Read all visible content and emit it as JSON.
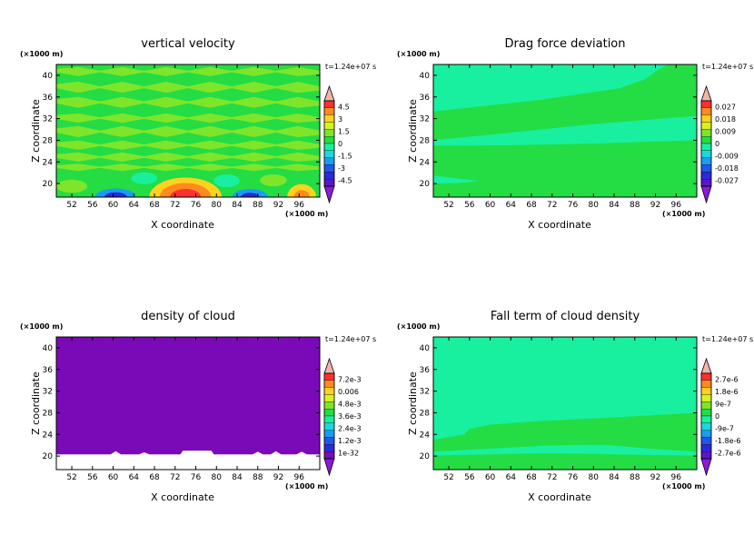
{
  "chart_data": [
    {
      "type": "heatmap",
      "title": "vertical velocity",
      "xlabel": "X coordinate",
      "ylabel": "Z coordinate",
      "x_unit": "(×1000 m)",
      "y_unit": "(×1000 m)",
      "time_label": "t=1.24e+07 s",
      "xlim": [
        49,
        100
      ],
      "ylim": [
        17.5,
        42
      ],
      "x_ticks": [
        "52",
        "56",
        "60",
        "64",
        "68",
        "72",
        "76",
        "80",
        "84",
        "88",
        "92",
        "96"
      ],
      "y_ticks": [
        "20",
        "24",
        "28",
        "32",
        "36",
        "40"
      ],
      "colorbar_labels": [
        "4.5",
        "3",
        "1.5",
        "0",
        "-1.5",
        "-3",
        "-4.5"
      ],
      "colorbar_colors": [
        "#ff3030",
        "#ff8a1f",
        "#ffd21f",
        "#d7f21f",
        "#7fe52a",
        "#24dd44",
        "#18f0a0",
        "#1ed6e0",
        "#1a9cf0",
        "#1e58ec",
        "#2a2ad8",
        "#5a16c8"
      ],
      "background_color": "#24dd44",
      "bands": [
        {
          "z0": 40.2,
          "z1": 41.2,
          "color": "#7fe52a"
        },
        {
          "z0": 37.2,
          "z1": 38.4,
          "color": "#7fe52a"
        },
        {
          "z0": 34.4,
          "z1": 35.6,
          "color": "#7fe52a"
        },
        {
          "z0": 31.6,
          "z1": 32.6,
          "color": "#7fe52a"
        },
        {
          "z0": 29.0,
          "z1": 30.2,
          "color": "#7fe52a"
        },
        {
          "z0": 26.6,
          "z1": 27.6,
          "color": "#7fe52a"
        },
        {
          "z0": 24.4,
          "z1": 25.4,
          "color": "#7fe52a"
        },
        {
          "z0": 22.6,
          "z1": 23.4,
          "color": "#7fe52a"
        }
      ],
      "cells": [
        {
          "x": 74,
          "z": 17.5,
          "rx": 7,
          "rz": 3.6,
          "color": "#ffd21f"
        },
        {
          "x": 74,
          "z": 17.5,
          "rx": 5,
          "rz": 2.6,
          "color": "#ff8a1f"
        },
        {
          "x": 74,
          "z": 17.5,
          "rx": 3,
          "rz": 1.5,
          "color": "#ff3030"
        },
        {
          "x": 60.5,
          "z": 17.5,
          "rx": 4,
          "rz": 1.6,
          "color": "#1a9cf0"
        },
        {
          "x": 60.5,
          "z": 17.5,
          "rx": 2.2,
          "rz": 0.9,
          "color": "#2a2ad8"
        },
        {
          "x": 86.5,
          "z": 17.5,
          "rx": 3.5,
          "rz": 1.5,
          "color": "#1a9cf0"
        },
        {
          "x": 86.5,
          "z": 17.5,
          "rx": 1.8,
          "rz": 0.8,
          "color": "#2a2ad8"
        },
        {
          "x": 96.5,
          "z": 17.5,
          "rx": 2.8,
          "rz": 2.4,
          "color": "#ffd21f"
        },
        {
          "x": 96.5,
          "z": 17.5,
          "rx": 1.5,
          "rz": 1.3,
          "color": "#ff8a1f"
        },
        {
          "x": 52,
          "z": 19.5,
          "rx": 3,
          "rz": 1.2,
          "color": "#7fe52a"
        },
        {
          "x": 66,
          "z": 21,
          "rx": 2.5,
          "rz": 1.1,
          "color": "#18f0a0"
        },
        {
          "x": 82,
          "z": 20.5,
          "rx": 2.5,
          "rz": 1.2,
          "color": "#18f0a0"
        },
        {
          "x": 91,
          "z": 20.6,
          "rx": 2.6,
          "rz": 1.1,
          "color": "#7fe52a"
        }
      ]
    },
    {
      "type": "heatmap",
      "title": "Drag force deviation",
      "xlabel": "X coordinate",
      "ylabel": "Z coordinate",
      "x_unit": "(×1000 m)",
      "y_unit": "(×1000 m)",
      "time_label": "t=1.24e+07 s",
      "xlim": [
        49,
        100
      ],
      "ylim": [
        17.5,
        42
      ],
      "x_ticks": [
        "52",
        "56",
        "60",
        "64",
        "68",
        "72",
        "76",
        "80",
        "84",
        "88",
        "92",
        "96"
      ],
      "y_ticks": [
        "20",
        "24",
        "28",
        "32",
        "36",
        "40"
      ],
      "colorbar_labels": [
        "0.027",
        "0.018",
        "0.009",
        "0",
        "-0.009",
        "-0.018",
        "-0.027"
      ],
      "colorbar_colors": [
        "#ff3030",
        "#ff8a1f",
        "#ffd21f",
        "#d7f21f",
        "#7fe52a",
        "#24dd44",
        "#18f0a0",
        "#1ed6e0",
        "#1a9cf0",
        "#1e58ec",
        "#2a2ad8",
        "#5a16c8"
      ],
      "background_color": "#18f0a0",
      "regions": [
        {
          "color": "#24dd44",
          "points": [
            [
              49,
              33.3
            ],
            [
              70,
              35.5
            ],
            [
              85,
              37.6
            ],
            [
              90,
              39.3
            ],
            [
              92.5,
              41.0
            ],
            [
              94.5,
              42
            ],
            [
              100,
              42
            ],
            [
              100,
              32.5
            ],
            [
              80,
              31.0
            ],
            [
              65,
              29.5
            ],
            [
              49,
              28.0
            ]
          ]
        },
        {
          "color": "#24dd44",
          "points": [
            [
              49,
              27.0
            ],
            [
              65,
              27.1
            ],
            [
              80,
              27.4
            ],
            [
              100,
              28.0
            ],
            [
              100,
              17.5
            ],
            [
              49,
              17.5
            ]
          ]
        },
        {
          "color": "#18f0a0",
          "points": [
            [
              49,
              21.5
            ],
            [
              54,
              20.9
            ],
            [
              58,
              20.5
            ],
            [
              54,
              20.1
            ],
            [
              49,
              20.0
            ]
          ]
        }
      ]
    },
    {
      "type": "heatmap",
      "title": "density of cloud",
      "xlabel": "X coordinate",
      "ylabel": "Z coordinate",
      "x_unit": "(×1000 m)",
      "y_unit": "(×1000 m)",
      "time_label": "t=1.24e+07 s",
      "xlim": [
        49,
        100
      ],
      "ylim": [
        17.5,
        42
      ],
      "x_ticks": [
        "52",
        "56",
        "60",
        "64",
        "68",
        "72",
        "76",
        "80",
        "84",
        "88",
        "92",
        "96"
      ],
      "y_ticks": [
        "20",
        "24",
        "28",
        "32",
        "36",
        "40"
      ],
      "colorbar_labels": [
        "7.2e-3",
        "0.006",
        "4.8e-3",
        "3.6e-3",
        "2.4e-3",
        "1.2e-3",
        "1e-32"
      ],
      "colorbar_colors": [
        "#ff3030",
        "#ff8a1f",
        "#ffd21f",
        "#d7f21f",
        "#7fe52a",
        "#24dd44",
        "#18f0a0",
        "#1ed6e0",
        "#1a9cf0",
        "#1e58ec",
        "#2a2ad8",
        "#7a0ab8"
      ],
      "background_color": "#7a0ab8",
      "regions": [
        {
          "color": "#ffffff",
          "points": [
            [
              49,
              17.5
            ],
            [
              49,
              20.3
            ],
            [
              59.5,
              20.3
            ],
            [
              60.5,
              20.9
            ],
            [
              61.5,
              20.3
            ],
            [
              65,
              20.3
            ],
            [
              66,
              20.7
            ],
            [
              67,
              20.3
            ],
            [
              73,
              20.3
            ],
            [
              73.5,
              21.0
            ],
            [
              79,
              21.0
            ],
            [
              79.5,
              20.3
            ],
            [
              87,
              20.3
            ],
            [
              88,
              20.8
            ],
            [
              89,
              20.3
            ],
            [
              90.5,
              20.3
            ],
            [
              91.5,
              20.9
            ],
            [
              92.5,
              20.3
            ],
            [
              95.5,
              20.3
            ],
            [
              96.5,
              20.8
            ],
            [
              97.5,
              20.3
            ],
            [
              100,
              20.3
            ],
            [
              100,
              17.5
            ]
          ]
        }
      ]
    },
    {
      "type": "heatmap",
      "title": "Fall term of cloud density",
      "xlabel": "X coordinate",
      "ylabel": "Z coordinate",
      "x_unit": "(×1000 m)",
      "y_unit": "(×1000 m)",
      "time_label": "t=1.24e+07 s",
      "xlim": [
        49,
        100
      ],
      "ylim": [
        17.5,
        42
      ],
      "x_ticks": [
        "52",
        "56",
        "60",
        "64",
        "68",
        "72",
        "76",
        "80",
        "84",
        "88",
        "92",
        "96"
      ],
      "y_ticks": [
        "20",
        "24",
        "28",
        "32",
        "36",
        "40"
      ],
      "colorbar_labels": [
        "2.7e-6",
        "1.8e-6",
        "9e-7",
        "0",
        "-9e-7",
        "-1.8e-6",
        "-2.7e-6"
      ],
      "colorbar_colors": [
        "#ff3030",
        "#ff8a1f",
        "#ffd21f",
        "#d7f21f",
        "#7fe52a",
        "#24dd44",
        "#18f0a0",
        "#1ed6e0",
        "#1a9cf0",
        "#1e58ec",
        "#2a2ad8",
        "#5a16c8"
      ],
      "background_color": "#18f0a0",
      "regions": [
        {
          "color": "#24dd44",
          "points": [
            [
              56,
              25.0
            ],
            [
              60,
              25.8
            ],
            [
              70,
              26.5
            ],
            [
              85,
              27.2
            ],
            [
              100,
              28.0
            ],
            [
              100,
              17.5
            ],
            [
              49,
              17.5
            ],
            [
              49,
              23.0
            ],
            [
              55,
              24.0
            ]
          ]
        },
        {
          "color": "#18f0a0",
          "points": [
            [
              49,
              20.8
            ],
            [
              62,
              21.5
            ],
            [
              72,
              22.0
            ],
            [
              82,
              22.1
            ],
            [
              92,
              21.3
            ],
            [
              100,
              20.8
            ],
            [
              100,
              20.1
            ],
            [
              90,
              20.2
            ],
            [
              80,
              20.4
            ],
            [
              70,
              20.5
            ],
            [
              60,
              20.3
            ],
            [
              49,
              20.1
            ]
          ]
        }
      ]
    }
  ]
}
